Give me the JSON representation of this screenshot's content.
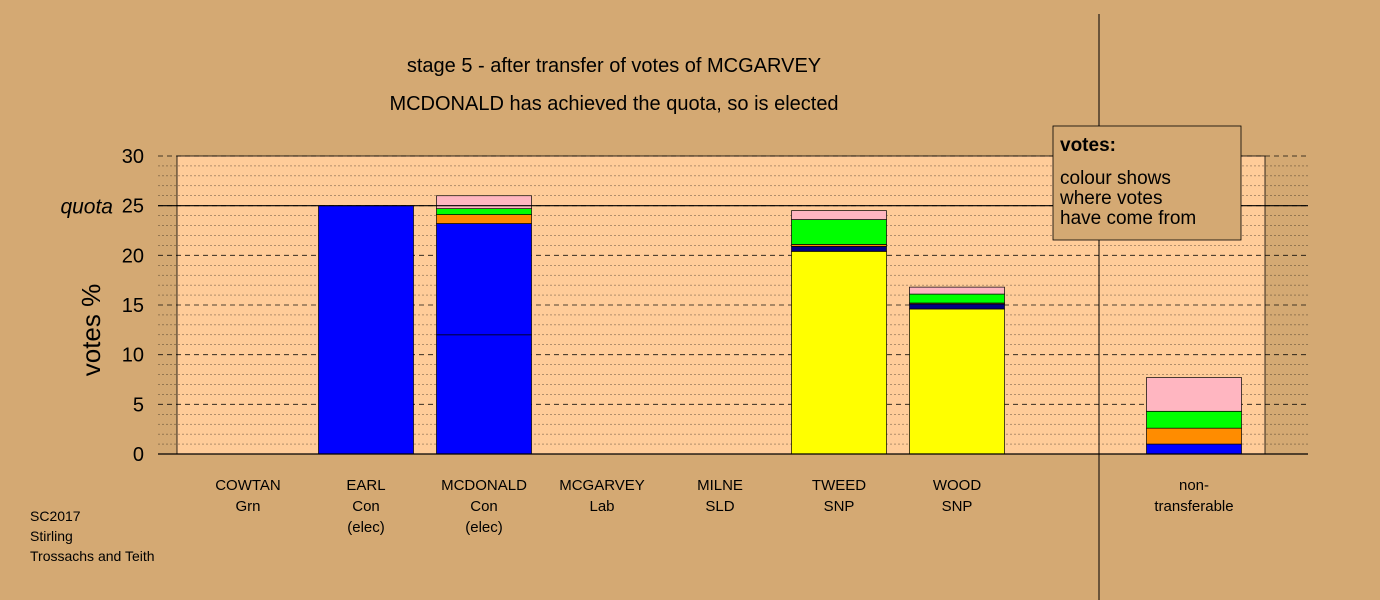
{
  "chart_data": {
    "type": "bar",
    "stacked": true,
    "title": "stage 5 - after transfer of votes of MCGARVEY",
    "subtitle": "MCDONALD has achieved the quota, so is elected",
    "ylabel": "votes %",
    "ylim": [
      0,
      30
    ],
    "yticks": [
      "0",
      "5",
      "10",
      "15",
      "20",
      "25",
      "30"
    ],
    "quota": {
      "label": "quota",
      "value": 25
    },
    "grid": true,
    "legend": {
      "title": "votes:",
      "lines": [
        "colour shows",
        "where votes",
        "have come from"
      ],
      "placement": "top-right"
    },
    "source_colors": {
      "Con": "#0000ff",
      "Con-elec": "#0000cc",
      "SNP": "#ffff00",
      "SNP-2": "#000080",
      "Lab": "#ff8c00",
      "Grn": "#00ff00",
      "SLD": "#ffb6c1",
      "edge": "#000000"
    },
    "candidates": [
      {
        "name": "COWTAN",
        "party": "Grn",
        "status": "",
        "segments": []
      },
      {
        "name": "EARL",
        "party": "Con",
        "status": "(elec)",
        "segments": [
          {
            "source": "Con",
            "value": 25.0
          }
        ]
      },
      {
        "name": "MCDONALD",
        "party": "Con",
        "status": "(elec)",
        "segments": [
          {
            "source": "Con",
            "value": 12.0
          },
          {
            "source": "Con",
            "value": 11.2
          },
          {
            "source": "Lab",
            "value": 0.9
          },
          {
            "source": "Grn",
            "value": 0.6
          },
          {
            "source": "SLD",
            "value": 1.3
          }
        ]
      },
      {
        "name": "MCGARVEY",
        "party": "Lab",
        "status": "",
        "segments": []
      },
      {
        "name": "MILNE",
        "party": "SLD",
        "status": "",
        "segments": []
      },
      {
        "name": "TWEED",
        "party": "SNP",
        "status": "",
        "segments": [
          {
            "source": "SNP",
            "value": 20.4
          },
          {
            "source": "SNP-2",
            "value": 0.5
          },
          {
            "source": "Lab",
            "value": 0.2
          },
          {
            "source": "Grn",
            "value": 2.5
          },
          {
            "source": "SLD",
            "value": 0.9
          }
        ]
      },
      {
        "name": "WOOD",
        "party": "SNP",
        "status": "",
        "segments": [
          {
            "source": "SNP",
            "value": 14.6
          },
          {
            "source": "SNP-2",
            "value": 0.5
          },
          {
            "source": "Lab",
            "value": 0.1
          },
          {
            "source": "Grn",
            "value": 0.9
          },
          {
            "source": "SLD",
            "value": 0.7
          }
        ]
      }
    ],
    "nontransferable": {
      "name": "non-",
      "party": "transferable",
      "status": "",
      "segments": [
        {
          "source": "Con",
          "value": 1.0
        },
        {
          "source": "Lab",
          "value": 1.6
        },
        {
          "source": "Grn",
          "value": 1.7
        },
        {
          "source": "SLD",
          "value": 3.4
        }
      ]
    }
  },
  "footer": {
    "line1": "SC2017",
    "line2": "Stirling",
    "line3": "Trossachs and Teith"
  }
}
